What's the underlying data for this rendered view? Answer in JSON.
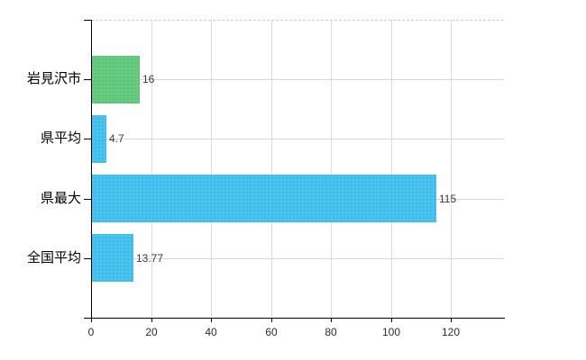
{
  "chart": {
    "background_color": "#ffffff",
    "axis_color": "#000000",
    "grid_color": "#d6d6d6",
    "top_boundary_style": "dashed",
    "category_label_color": "#000000",
    "value_label_color": "#3a3a3a",
    "tick_label_color": "#2b2b2b"
  },
  "chart_data": {
    "type": "bar",
    "orientation": "horizontal",
    "title": "",
    "xlabel": "",
    "ylabel": "",
    "legend": null,
    "grid": true,
    "categories": [
      "岩見沢市",
      "県平均",
      "県最大",
      "全国平均"
    ],
    "values": [
      16,
      4.7,
      115,
      13.77
    ],
    "value_labels": [
      "16",
      "4.7",
      "115",
      "13.77"
    ],
    "bar_colors": [
      "#5fc87a",
      "#41c0ee",
      "#41c0ee",
      "#41c0ee"
    ],
    "x_ticks": [
      0,
      20,
      40,
      60,
      80,
      100,
      120
    ],
    "x_tick_labels": [
      "0",
      "20",
      "40",
      "60",
      "80",
      "100",
      "120"
    ],
    "xlim": [
      0,
      138
    ]
  }
}
